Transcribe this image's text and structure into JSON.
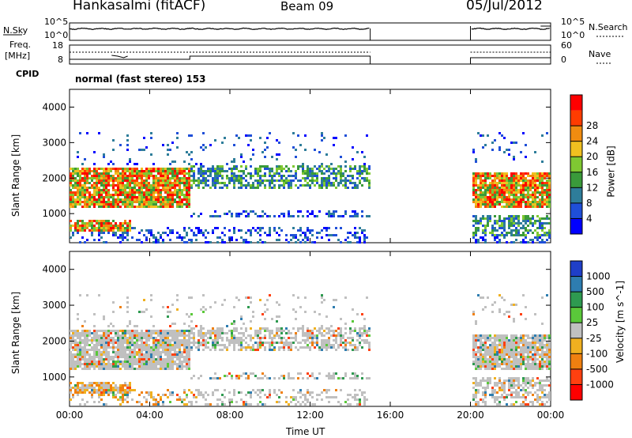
{
  "header": {
    "station": "Hankasalmi (fitACF)",
    "beam": "Beam 09",
    "date": "05/Jul/2012"
  },
  "status": {
    "nsky_label": "N.Sky",
    "nsky_ticks": [
      "10^5",
      "10^0"
    ],
    "nsearch_label": "N.Search",
    "freq_label_line1": "Freq.",
    "freq_label_line2": "[MHz]",
    "freq_ticks": [
      "18",
      "8"
    ],
    "nave_label": "Nave",
    "nave_ticks": [
      "60",
      "0"
    ],
    "cpid_label": "CPID",
    "cpid_value": "normal (fast stereo) 153"
  },
  "chart_data": [
    {
      "type": "heatmap",
      "name": "power",
      "xlabel": "",
      "ylabel": "Slant Range [km]",
      "x_ticks": [
        "00:00",
        "04:00",
        "08:00",
        "12:00",
        "16:00",
        "20:00",
        "00:00"
      ],
      "x_tick_hours": [
        0,
        4,
        8,
        12,
        16,
        20,
        24
      ],
      "y_ticks": [
        1000,
        2000,
        3000,
        4000
      ],
      "xlim_hours": [
        0,
        24
      ],
      "ylim_km": [
        180,
        4500
      ],
      "colorbar": {
        "label": "Power [dB]",
        "ticks": [
          4,
          8,
          12,
          16,
          20,
          24,
          28
        ],
        "colors": [
          "#0000ff",
          "#1f4fd8",
          "#2e7d9a",
          "#3a9a3a",
          "#7fc832",
          "#f0c020",
          "#f08c10",
          "#ff3c00",
          "#ff0000"
        ]
      },
      "data_gaps_hours": [
        [
          15.0,
          20.0
        ]
      ],
      "echo_bands": [
        {
          "t0": 0.0,
          "t1": 6.0,
          "r0": 1200,
          "r1": 2300,
          "level": "strong"
        },
        {
          "t0": 0.0,
          "t1": 3.0,
          "r0": 550,
          "r1": 850,
          "level": "strong"
        },
        {
          "t0": 6.0,
          "t1": 15.0,
          "r0": 1700,
          "r1": 2400,
          "level": "medium"
        },
        {
          "t0": 6.0,
          "t1": 15.0,
          "r0": 950,
          "r1": 1150,
          "level": "weak"
        },
        {
          "t0": 20.0,
          "t1": 24.0,
          "r0": 1200,
          "r1": 2200,
          "level": "strong"
        },
        {
          "t0": 20.0,
          "t1": 24.0,
          "r0": 400,
          "r1": 1000,
          "level": "medium"
        }
      ]
    },
    {
      "type": "heatmap",
      "name": "velocity",
      "xlabel": "Time UT",
      "ylabel": "Slant Range [km]",
      "x_ticks": [
        "00:00",
        "04:00",
        "08:00",
        "12:00",
        "16:00",
        "20:00",
        "00:00"
      ],
      "x_tick_hours": [
        0,
        4,
        8,
        12,
        16,
        20,
        24
      ],
      "y_ticks": [
        1000,
        2000,
        3000,
        4000
      ],
      "xlim_hours": [
        0,
        24
      ],
      "ylim_km": [
        180,
        4500
      ],
      "colorbar": {
        "label": "Velocity [m s^-1]",
        "ticks": [
          "1000",
          "500",
          "100",
          "25",
          "-25",
          "-100",
          "-500",
          "-1000"
        ],
        "colors": [
          "#1f3fc8",
          "#2e7db0",
          "#2e9a50",
          "#5ac83a",
          "#c0c0c0",
          "#f0b020",
          "#f08010",
          "#ff4010",
          "#ff0000"
        ]
      },
      "data_gaps_hours": [
        [
          15.0,
          20.0
        ]
      ]
    }
  ]
}
